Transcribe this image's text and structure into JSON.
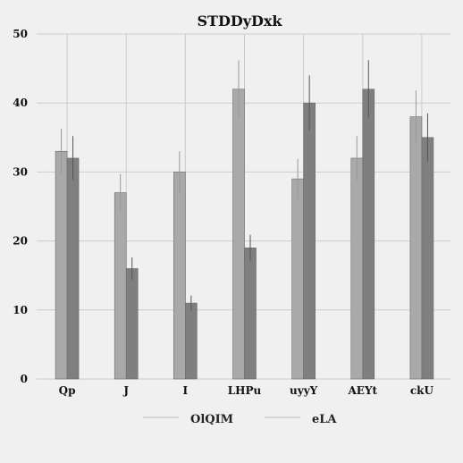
{
  "chart_data": {
    "type": "bar",
    "title": "STDDyDxk",
    "xlabel": "",
    "ylabel": "",
    "ylim": [
      0,
      50
    ],
    "yticks": [
      0,
      10,
      20,
      30,
      40,
      50
    ],
    "grid": true,
    "legend_position": "bottom",
    "categories": [
      "Qp",
      "J",
      "I",
      "LHPu",
      "uyyY",
      "AEYt",
      "ckU"
    ],
    "series": [
      {
        "name": "OlQIM",
        "color": "#a9a9a9",
        "values": [
          33,
          27,
          30,
          42,
          29,
          32,
          38
        ],
        "errors": [
          3.3,
          2.7,
          3.0,
          4.2,
          2.9,
          3.2,
          3.8
        ]
      },
      {
        "name": "eLA",
        "color": "#7f7f7f",
        "values": [
          32,
          16,
          11,
          19,
          40,
          42,
          35
        ],
        "errors": [
          3.2,
          1.6,
          1.1,
          1.9,
          4.0,
          4.2,
          3.5
        ]
      }
    ]
  }
}
